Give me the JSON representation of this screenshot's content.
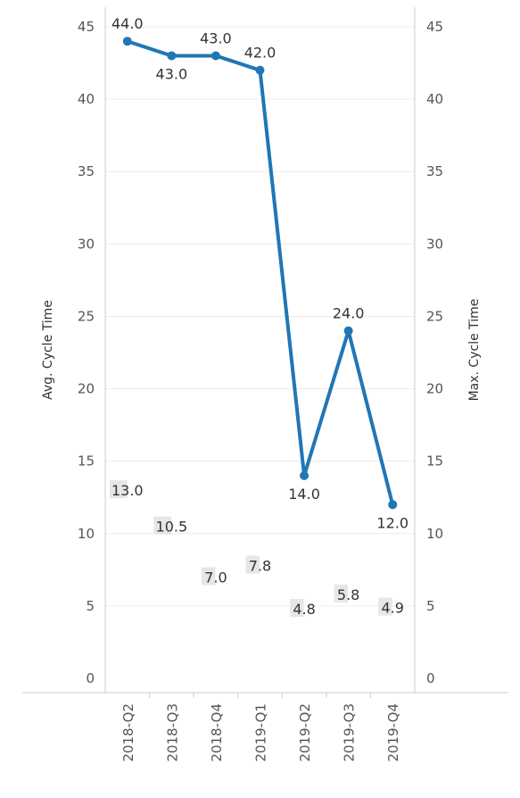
{
  "chart_data": {
    "type": "line",
    "categories": [
      "2018-Q2",
      "2018-Q3",
      "2018-Q4",
      "2019-Q1",
      "2019-Q2",
      "2019-Q3",
      "2019-Q4"
    ],
    "series": [
      {
        "values": [
          44.0,
          43.0,
          43.0,
          42.0,
          14.0,
          24.0,
          12.0
        ],
        "labels": [
          "44.0",
          "43.0",
          "43.0",
          "42.0",
          "14.0",
          "24.0",
          "12.0"
        ],
        "color": "#1f77b4",
        "axis": "right"
      },
      {
        "values": [
          13.0,
          10.5,
          7.0,
          7.8,
          4.8,
          5.8,
          4.9
        ],
        "labels": [
          "13.0",
          "10.5",
          "7.0",
          "7.8",
          "4.8",
          "5.8",
          "4.9"
        ],
        "axis": "left",
        "mark": "text"
      }
    ],
    "ylabel_left": "Avg. Cycle Time",
    "ylabel_right": "Max. Cycle Time",
    "ylim": [
      0,
      45
    ],
    "yticks": [
      "0",
      "5",
      "10",
      "15",
      "20",
      "25",
      "30",
      "35",
      "40",
      "45"
    ],
    "grid": true,
    "line_color": "#1f77b4",
    "label_bg_color": "#e6e6e6"
  }
}
